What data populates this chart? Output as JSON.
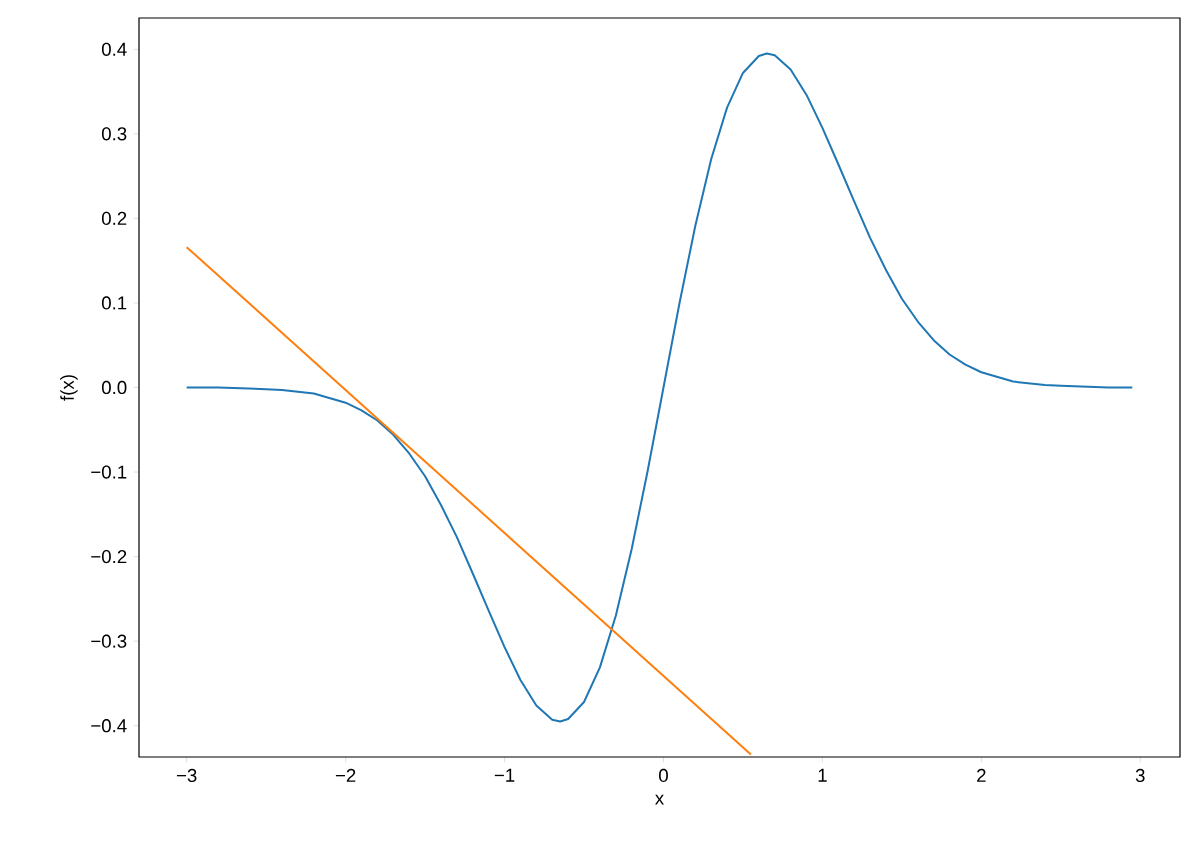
{
  "chart_data": {
    "type": "line",
    "xlabel": "x",
    "ylabel": "f(x)",
    "xlim": [
      -3.3,
      3.25
    ],
    "ylim": [
      -0.437,
      0.437
    ],
    "xticks": [
      {
        "value": -3,
        "label": "−3"
      },
      {
        "value": -2,
        "label": "−2"
      },
      {
        "value": -1,
        "label": "−1"
      },
      0,
      1,
      2,
      3
    ],
    "yticks": [
      {
        "value": -0.4,
        "label": "−0.4"
      },
      {
        "value": -0.3,
        "label": "−0.3"
      },
      {
        "value": -0.2,
        "label": "−0.2"
      },
      {
        "value": -0.1,
        "label": "−0.1"
      },
      {
        "value": 0,
        "label": "0.0"
      },
      0.1,
      0.2,
      0.3,
      0.4
    ],
    "grid": false,
    "marker": "none",
    "line_style": "solid",
    "series": [
      {
        "color": "#1f77b4",
        "x": [
          -3,
          -2.8,
          -2.5,
          -2.4,
          -2.2,
          -2.0,
          -1.9,
          -1.8,
          -1.7,
          -1.6,
          -1.5,
          -1.4,
          -1.3,
          -1.2,
          -1.1,
          -1.0,
          -0.9,
          -0.8,
          -0.7,
          -0.65,
          -0.6,
          -0.5,
          -0.4,
          -0.3,
          -0.2,
          -0.1,
          0,
          0.1,
          0.2,
          0.3,
          0.4,
          0.5,
          0.6,
          0.65,
          0.7,
          0.8,
          0.9,
          1.0,
          1.1,
          1.2,
          1.3,
          1.4,
          1.5,
          1.6,
          1.7,
          1.8,
          1.9,
          2.0,
          2.2,
          2.4,
          2.5,
          2.8,
          2.95
        ],
        "values": [
          0.0,
          0.0,
          -0.002,
          -0.003,
          -0.007,
          -0.018,
          -0.027,
          -0.039,
          -0.056,
          -0.078,
          -0.105,
          -0.139,
          -0.177,
          -0.22,
          -0.264,
          -0.307,
          -0.346,
          -0.376,
          -0.393,
          -0.395,
          -0.392,
          -0.372,
          -0.331,
          -0.27,
          -0.191,
          -0.099,
          0.0,
          0.099,
          0.191,
          0.27,
          0.331,
          0.372,
          0.392,
          0.395,
          0.393,
          0.376,
          0.346,
          0.307,
          0.264,
          0.22,
          0.177,
          0.139,
          0.105,
          0.078,
          0.056,
          0.039,
          0.027,
          0.018,
          0.007,
          0.003,
          0.002,
          0.0,
          0.0
        ]
      },
      {
        "color": "#ff7f0e",
        "x": [
          -3,
          0.55
        ],
        "values": [
          0.166,
          -0.434
        ]
      }
    ]
  }
}
